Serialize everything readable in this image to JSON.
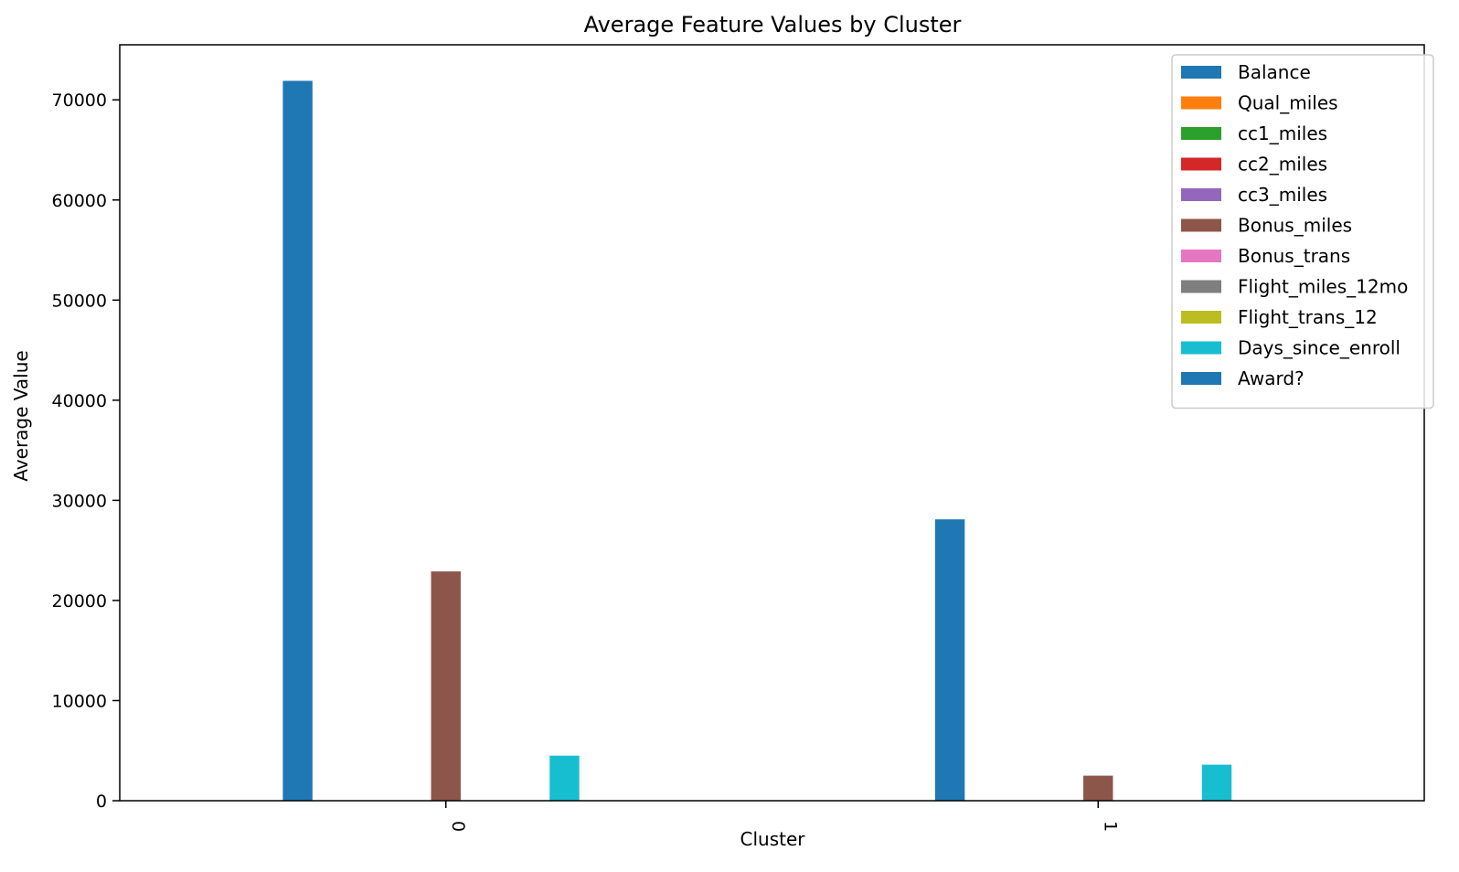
{
  "chart_data": {
    "type": "bar",
    "title": "Average Feature Values by Cluster",
    "xlabel": "Cluster",
    "ylabel": "Average Value",
    "categories": [
      "0",
      "1"
    ],
    "ylim": [
      0,
      75500
    ],
    "yticks": [
      0,
      10000,
      20000,
      30000,
      40000,
      50000,
      60000,
      70000
    ],
    "ytick_labels": [
      "0",
      "10000",
      "20000",
      "30000",
      "40000",
      "50000",
      "60000",
      "70000"
    ],
    "grid": false,
    "legend_position": "top-right",
    "series": [
      {
        "name": "Balance",
        "color": "#1f77b4",
        "values": [
          71900,
          28100
        ]
      },
      {
        "name": "Qual_miles",
        "color": "#ff7f0e",
        "values": [
          0,
          0
        ]
      },
      {
        "name": "cc1_miles",
        "color": "#2ca02c",
        "values": [
          0,
          0
        ]
      },
      {
        "name": "cc2_miles",
        "color": "#d62728",
        "values": [
          0,
          0
        ]
      },
      {
        "name": "cc3_miles",
        "color": "#9467bd",
        "values": [
          0,
          0
        ]
      },
      {
        "name": "Bonus_miles",
        "color": "#8c564b",
        "values": [
          22900,
          2500
        ]
      },
      {
        "name": "Bonus_trans",
        "color": "#e377c2",
        "values": [
          0,
          0
        ]
      },
      {
        "name": "Flight_miles_12mo",
        "color": "#7f7f7f",
        "values": [
          0,
          0
        ]
      },
      {
        "name": "Flight_trans_12",
        "color": "#bcbd22",
        "values": [
          0,
          0
        ]
      },
      {
        "name": "Days_since_enroll",
        "color": "#17becf",
        "values": [
          4500,
          3600
        ]
      },
      {
        "name": "Award?",
        "color": "#1f77b4",
        "values": [
          0,
          0
        ]
      }
    ]
  }
}
